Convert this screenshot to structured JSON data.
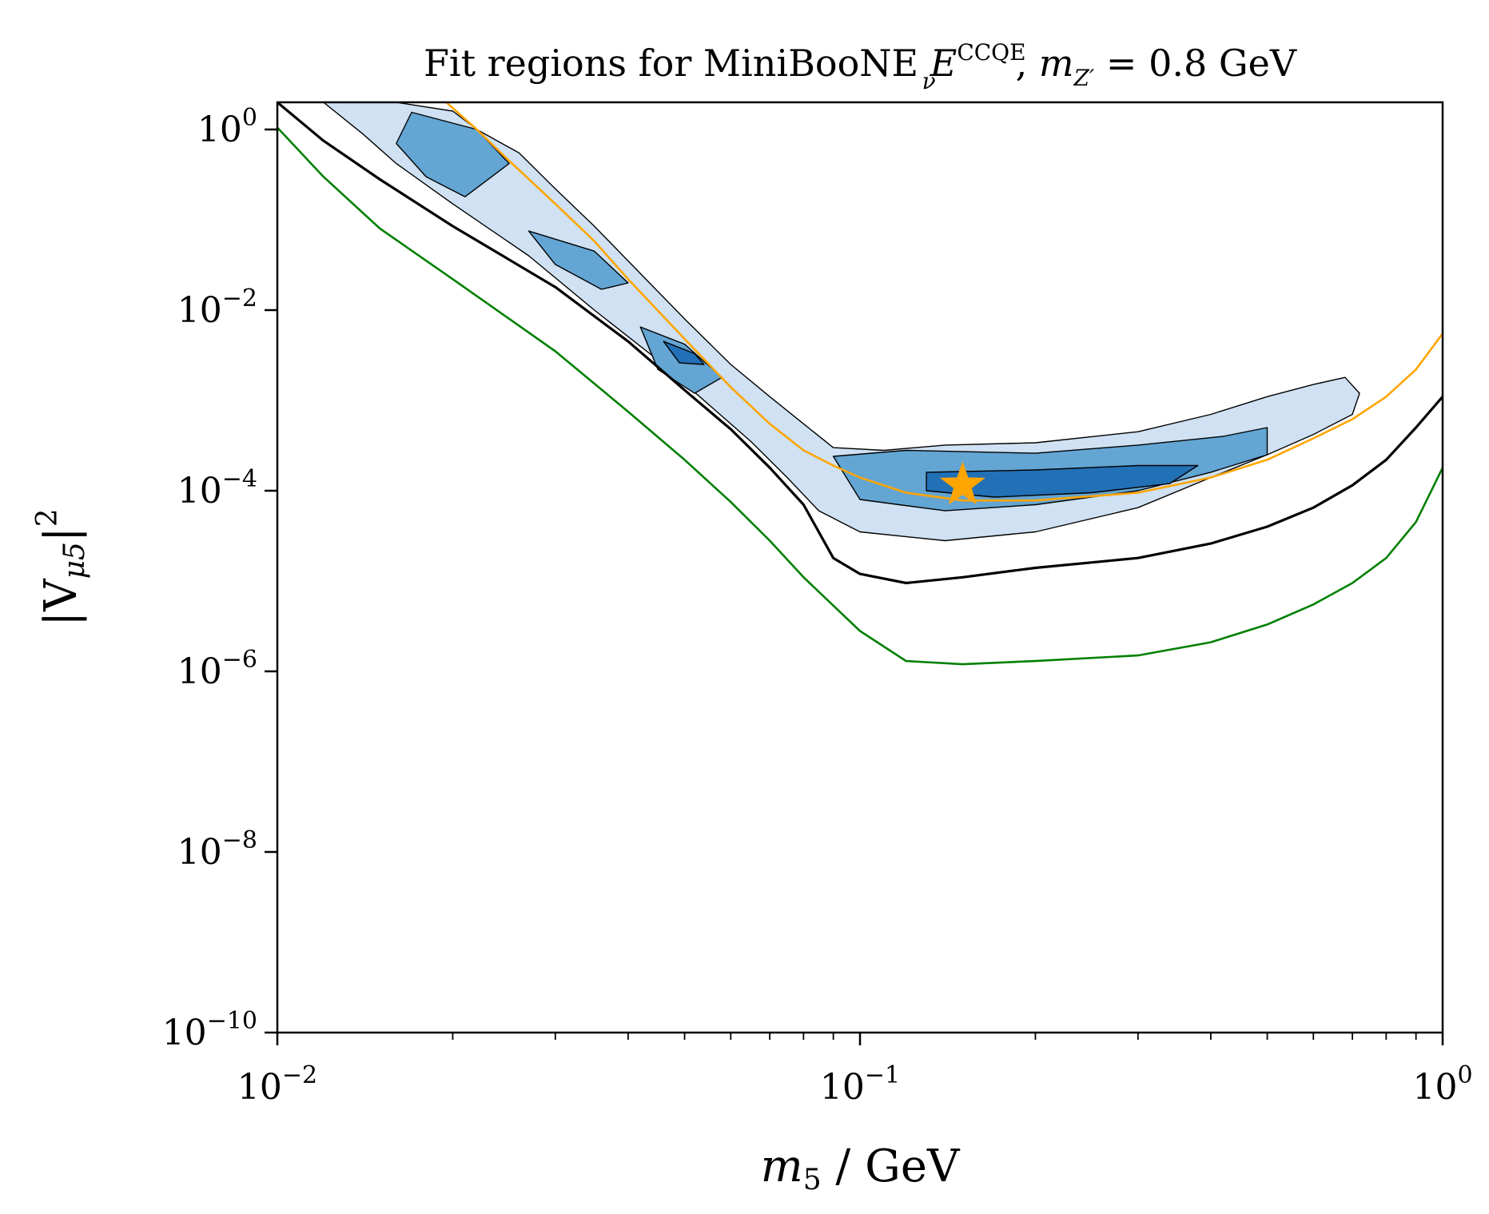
{
  "chart_data": {
    "type": "contour",
    "title": {
      "prefix": "Fit regions for MiniBooNE ",
      "E": "E",
      "E_sup": "CCQE",
      "E_sub": "ν",
      "comma": ", ",
      "m": "m",
      "m_sub": "Z′",
      "suffix": " = 0.8 GeV"
    },
    "xlabel": {
      "main": "m",
      "sub": "5",
      "rest": " / GeV"
    },
    "ylabel": {
      "open": "|V",
      "sub": "μ5",
      "close": "|",
      "sup": "2"
    },
    "x_scale": "log",
    "y_scale": "log",
    "xlim": [
      0.01,
      1.0
    ],
    "ylim": [
      1e-10,
      2.0
    ],
    "x_ticks": [
      {
        "value": 0.01,
        "base": "10",
        "exp": "−2"
      },
      {
        "value": 0.1,
        "base": "10",
        "exp": "−1"
      },
      {
        "value": 1.0,
        "base": "10",
        "exp": "0"
      }
    ],
    "y_ticks": [
      {
        "value": 1e-10,
        "base": "10",
        "exp": "−10"
      },
      {
        "value": 1e-08,
        "base": "10",
        "exp": "−8"
      },
      {
        "value": 1e-06,
        "base": "10",
        "exp": "−6"
      },
      {
        "value": 0.0001,
        "base": "10",
        "exp": "−4"
      },
      {
        "value": 0.01,
        "base": "10",
        "exp": "−2"
      },
      {
        "value": 1.0,
        "base": "10",
        "exp": "0"
      }
    ],
    "colors": {
      "level1": "#cfe1f2",
      "level2": "#63a5d3",
      "level3": "#2270b6",
      "orange": "#ffa500",
      "green": "#008000",
      "black": "#000000"
    },
    "lines": [
      {
        "color": "green",
        "points": [
          [
            0.01,
            1.05
          ],
          [
            0.012,
            0.3
          ],
          [
            0.015,
            0.08
          ],
          [
            0.02,
            0.022
          ],
          [
            0.03,
            0.0035
          ],
          [
            0.04,
            0.00075
          ],
          [
            0.05,
            0.00022
          ],
          [
            0.06,
            7.5e-05
          ],
          [
            0.07,
            2.8e-05
          ],
          [
            0.08,
            1.1e-05
          ],
          [
            0.1,
            2.8e-06
          ],
          [
            0.12,
            1.3e-06
          ],
          [
            0.15,
            1.2e-06
          ],
          [
            0.2,
            1.3e-06
          ],
          [
            0.3,
            1.5e-06
          ],
          [
            0.4,
            2.1e-06
          ],
          [
            0.5,
            3.3e-06
          ],
          [
            0.6,
            5.5e-06
          ],
          [
            0.7,
            9.5e-06
          ],
          [
            0.8,
            1.8e-05
          ],
          [
            0.9,
            4.5e-05
          ],
          [
            1.0,
            0.00018
          ]
        ]
      },
      {
        "color": "black",
        "points": [
          [
            0.01,
            2.0
          ],
          [
            0.012,
            0.75
          ],
          [
            0.015,
            0.28
          ],
          [
            0.02,
            0.085
          ],
          [
            0.03,
            0.018
          ],
          [
            0.04,
            0.0045
          ],
          [
            0.05,
            0.0013
          ],
          [
            0.06,
            0.00048
          ],
          [
            0.07,
            0.00018
          ],
          [
            0.08,
            7e-05
          ],
          [
            0.09,
            1.8e-05
          ],
          [
            0.1,
            1.2e-05
          ],
          [
            0.12,
            9.5e-06
          ],
          [
            0.15,
            1.1e-05
          ],
          [
            0.2,
            1.4e-05
          ],
          [
            0.3,
            1.8e-05
          ],
          [
            0.4,
            2.6e-05
          ],
          [
            0.5,
            4e-05
          ],
          [
            0.6,
            6.5e-05
          ],
          [
            0.7,
            0.000115
          ],
          [
            0.8,
            0.00022
          ],
          [
            0.9,
            0.0005
          ],
          [
            1.0,
            0.0011
          ]
        ]
      },
      {
        "color": "orange",
        "points": [
          [
            0.0195,
            2.0
          ],
          [
            0.022,
            1.0
          ],
          [
            0.025,
            0.45
          ],
          [
            0.03,
            0.15
          ],
          [
            0.035,
            0.058
          ],
          [
            0.04,
            0.022
          ],
          [
            0.05,
            0.0048
          ],
          [
            0.06,
            0.0014
          ],
          [
            0.07,
            0.00055
          ],
          [
            0.08,
            0.00028
          ],
          [
            0.09,
            0.00019
          ],
          [
            0.1,
            0.00014
          ],
          [
            0.12,
            9.5e-05
          ],
          [
            0.15,
            7.8e-05
          ],
          [
            0.2,
            7.8e-05
          ],
          [
            0.3,
            9.5e-05
          ],
          [
            0.4,
            0.00014
          ],
          [
            0.5,
            0.00022
          ],
          [
            0.6,
            0.00038
          ],
          [
            0.7,
            0.00062
          ],
          [
            0.8,
            0.0011
          ],
          [
            0.9,
            0.0022
          ],
          [
            1.0,
            0.0055
          ]
        ]
      }
    ],
    "regions": [
      {
        "level": 1,
        "points": [
          [
            0.012,
            2.0
          ],
          [
            0.016,
            2.0
          ],
          [
            0.02,
            1.6
          ],
          [
            0.022,
            1.0
          ],
          [
            0.026,
            0.55
          ],
          [
            0.03,
            0.22
          ],
          [
            0.035,
            0.085
          ],
          [
            0.04,
            0.035
          ],
          [
            0.05,
            0.008
          ],
          [
            0.06,
            0.0025
          ],
          [
            0.07,
            0.0011
          ],
          [
            0.08,
            0.00055
          ],
          [
            0.09,
            0.0003
          ],
          [
            0.11,
            0.00028
          ],
          [
            0.14,
            0.00032
          ],
          [
            0.2,
            0.00034
          ],
          [
            0.3,
            0.00045
          ],
          [
            0.4,
            0.0007
          ],
          [
            0.5,
            0.0011
          ],
          [
            0.6,
            0.0015
          ],
          [
            0.68,
            0.0018
          ],
          [
            0.72,
            0.0012
          ],
          [
            0.7,
            0.0007
          ],
          [
            0.6,
            0.00042
          ],
          [
            0.5,
            0.00025
          ],
          [
            0.4,
            0.00014
          ],
          [
            0.3,
            6.5e-05
          ],
          [
            0.2,
            3.5e-05
          ],
          [
            0.14,
            2.8e-05
          ],
          [
            0.1,
            3.5e-05
          ],
          [
            0.085,
            6e-05
          ],
          [
            0.075,
            0.00014
          ],
          [
            0.065,
            0.00035
          ],
          [
            0.055,
            0.0009
          ],
          [
            0.045,
            0.0028
          ],
          [
            0.035,
            0.01
          ],
          [
            0.027,
            0.04
          ],
          [
            0.02,
            0.15
          ],
          [
            0.016,
            0.42
          ],
          [
            0.014,
            0.9
          ],
          [
            0.012,
            2.0
          ]
        ]
      },
      {
        "level": 2,
        "points": [
          [
            0.017,
            1.55
          ],
          [
            0.022,
            1.0
          ],
          [
            0.025,
            0.42
          ],
          [
            0.021,
            0.18
          ],
          [
            0.018,
            0.3
          ],
          [
            0.016,
            0.7
          ],
          [
            0.017,
            1.55
          ]
        ]
      },
      {
        "level": 2,
        "points": [
          [
            0.027,
            0.075
          ],
          [
            0.035,
            0.045
          ],
          [
            0.04,
            0.02
          ],
          [
            0.036,
            0.017
          ],
          [
            0.03,
            0.032
          ],
          [
            0.027,
            0.075
          ]
        ]
      },
      {
        "level": 2,
        "points": [
          [
            0.042,
            0.0065
          ],
          [
            0.05,
            0.0042
          ],
          [
            0.058,
            0.0018
          ],
          [
            0.052,
            0.0012
          ],
          [
            0.045,
            0.0022
          ],
          [
            0.042,
            0.0065
          ]
        ]
      },
      {
        "level": 2,
        "points": [
          [
            0.09,
            0.00024
          ],
          [
            0.12,
            0.00028
          ],
          [
            0.2,
            0.00026
          ],
          [
            0.3,
            0.00032
          ],
          [
            0.42,
            0.0004
          ],
          [
            0.5,
            0.0005
          ],
          [
            0.5,
            0.00025
          ],
          [
            0.4,
            0.00016
          ],
          [
            0.3,
            0.0001
          ],
          [
            0.2,
            7e-05
          ],
          [
            0.14,
            6e-05
          ],
          [
            0.1,
            8e-05
          ],
          [
            0.09,
            0.00024
          ]
        ]
      },
      {
        "level": 3,
        "points": [
          [
            0.13,
            0.00016
          ],
          [
            0.2,
            0.00017
          ],
          [
            0.3,
            0.00019
          ],
          [
            0.38,
            0.00019
          ],
          [
            0.34,
            0.00012
          ],
          [
            0.25,
            9.5e-05
          ],
          [
            0.17,
            8.5e-05
          ],
          [
            0.13,
            0.0001
          ],
          [
            0.13,
            0.00016
          ]
        ]
      },
      {
        "level": 3,
        "points": [
          [
            0.046,
            0.0045
          ],
          [
            0.052,
            0.0033
          ],
          [
            0.054,
            0.0025
          ],
          [
            0.049,
            0.0026
          ],
          [
            0.046,
            0.0045
          ]
        ]
      }
    ],
    "best_fit": {
      "x": 0.15,
      "y": 0.000115,
      "marker": "star",
      "color": "orange"
    }
  }
}
